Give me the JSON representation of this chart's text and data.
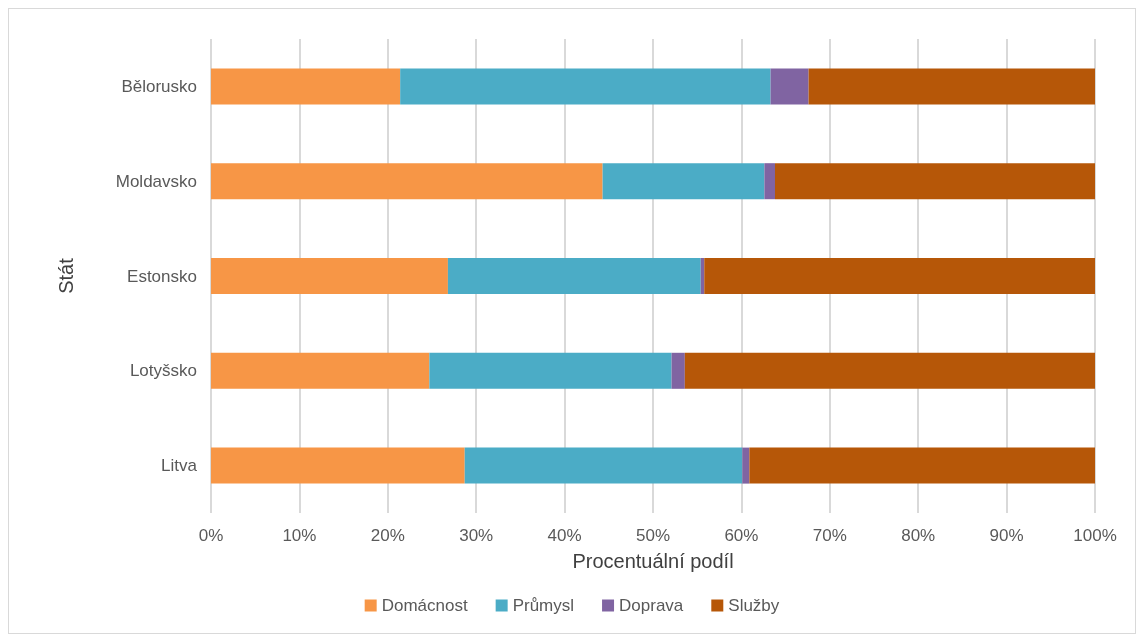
{
  "chart_data": {
    "type": "bar",
    "orientation": "horizontal",
    "stacked": true,
    "xlabel": "Procentuální podíl",
    "ylabel": "Stát",
    "categories": [
      "Bělorusko",
      "Moldavsko",
      "Estonsko",
      "Lotyšsko",
      "Litva"
    ],
    "series": [
      {
        "name": "Domácnost",
        "color": "#f79646",
        "values": [
          21.4,
          44.3,
          26.8,
          24.7,
          28.7
        ]
      },
      {
        "name": "Průmysl",
        "color": "#4bacc6",
        "values": [
          41.9,
          18.3,
          28.6,
          27.4,
          31.4
        ]
      },
      {
        "name": "Doprava",
        "color": "#8064a2",
        "values": [
          4.3,
          1.2,
          0.4,
          1.5,
          0.8
        ]
      },
      {
        "name": "Služby",
        "color": "#b65708",
        "values": [
          32.4,
          36.2,
          44.2,
          46.4,
          39.1
        ]
      }
    ],
    "xlim": [
      0,
      100
    ],
    "xticks": [
      {
        "value": 0,
        "label": "0%"
      },
      {
        "value": 10,
        "label": "10%"
      },
      {
        "value": 20,
        "label": "20%"
      },
      {
        "value": 30,
        "label": "30%"
      },
      {
        "value": 40,
        "label": "40%"
      },
      {
        "value": 50,
        "label": "50%"
      },
      {
        "value": 60,
        "label": "60%"
      },
      {
        "value": 70,
        "label": "70%"
      },
      {
        "value": 80,
        "label": "80%"
      },
      {
        "value": 90,
        "label": "90%"
      },
      {
        "value": 100,
        "label": "100%"
      }
    ],
    "grid": "x",
    "legend": "bottom"
  }
}
